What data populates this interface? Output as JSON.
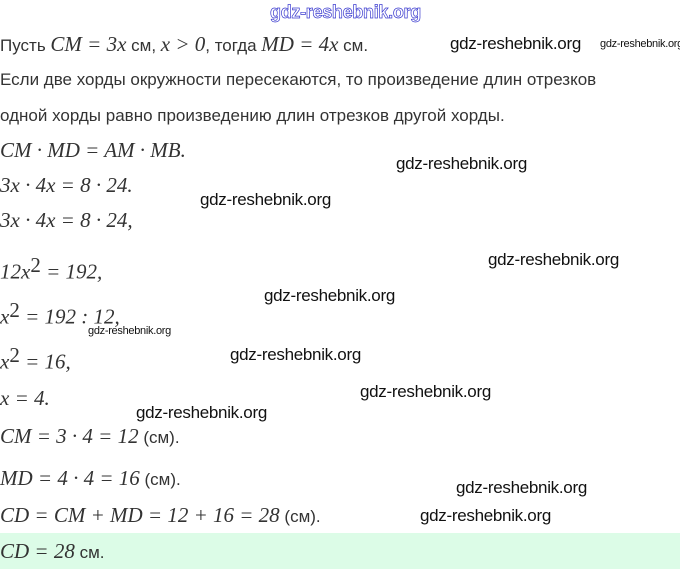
{
  "solution": {
    "lines": [
      [
        {
          "t": "Пусть "
        },
        {
          "m": "CM = 3x"
        },
        {
          "t": " см, "
        },
        {
          "m": "x  >  0"
        },
        {
          "t": ", тогда "
        },
        {
          "m": "MD = 4x"
        },
        {
          "t": " см."
        }
      ],
      [
        {
          "t": "Если две хорды окружности пересекаются, то произведение длин отрезков"
        }
      ],
      [
        {
          "t": "одной хорды равно произведению длин отрезков другой хорды."
        }
      ],
      [
        {
          "m": "CM · MD = AM · MB."
        }
      ],
      [
        {
          "m": "3x · 4x = 8 · 24."
        }
      ],
      [
        {
          "m": "3x · 4x = 8 · 24,"
        }
      ],
      [
        {
          "m": "12x"
        },
        {
          "sup": "2"
        },
        {
          "m": " = 192,"
        }
      ],
      [
        {
          "m": "x"
        },
        {
          "sup": "2"
        },
        {
          "m": " = 192 : 12,"
        }
      ],
      [
        {
          "m": "x"
        },
        {
          "sup": "2"
        },
        {
          "m": " = 16,"
        }
      ],
      [
        {
          "m": "x = 4."
        }
      ],
      [
        {
          "m": "CM = 3 · 4 = 12"
        },
        {
          "t": " (см)."
        }
      ],
      [
        {
          "m": "MD = 4 · 4 = 16"
        },
        {
          "t": " (см)."
        }
      ],
      [
        {
          "m": "CD = CM + MD = 12 + 16 = 28"
        },
        {
          "t": " (см)."
        }
      ]
    ],
    "answer": [
      {
        "m": "CD = 28"
      },
      {
        "t": " см."
      }
    ]
  },
  "watermark": "gdz-reshebnik.org",
  "colors": {
    "answer_background": "#dcfce7",
    "watermark_top": "#3b3bcf"
  }
}
